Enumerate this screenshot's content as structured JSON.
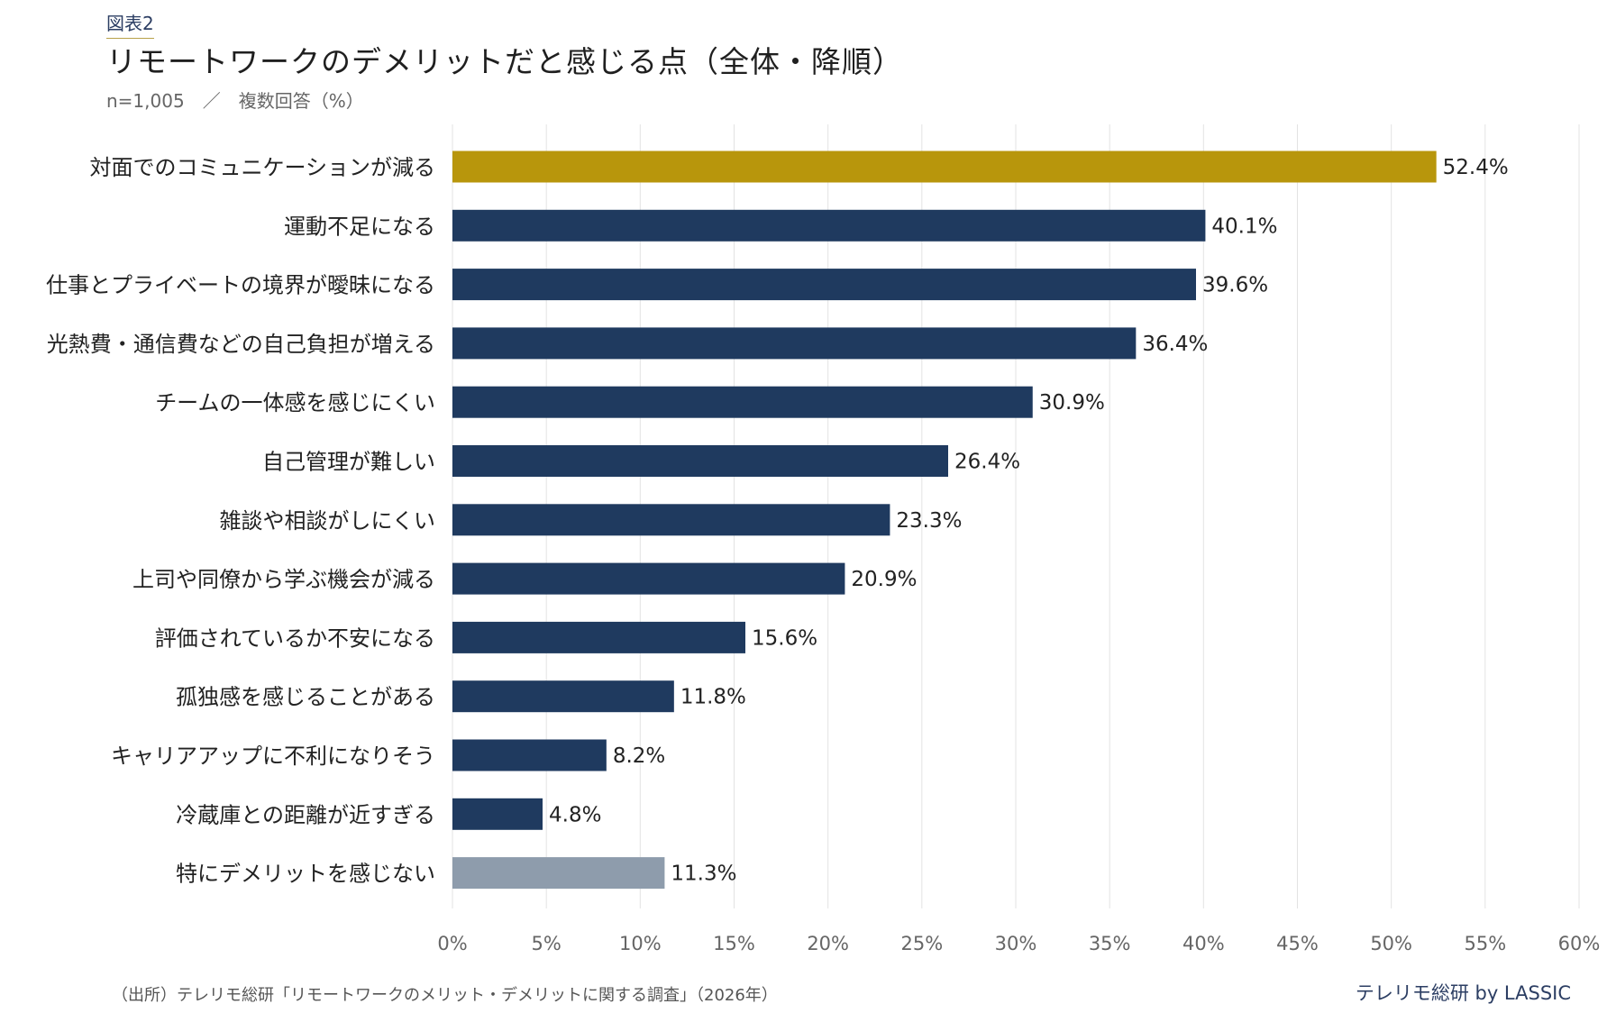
{
  "header": {
    "figure_label": "図表2",
    "title": "リモートワークのデメリットだと感じる点（全体・降順）",
    "subtitle": "n=1,005　／　複数回答（%）"
  },
  "footer": {
    "source": "（出所）テレリモ総研「リモートワークのメリット・デメリットに関する調査」（2026年）",
    "credit": "テレリモ総研 by LASSIC"
  },
  "colors": {
    "highlight": "#b8960c",
    "default": "#1f3a5f",
    "none": "#8e9cac",
    "grid": "#e3e3e3"
  },
  "chart_data": {
    "type": "bar",
    "orientation": "horizontal",
    "title": "リモートワークのデメリットだと感じる点（全体・降順）",
    "xlim": [
      0,
      60
    ],
    "x_ticks": [
      0,
      5,
      10,
      15,
      20,
      25,
      30,
      35,
      40,
      45,
      50,
      55,
      60
    ],
    "tick_suffix": "%",
    "grid": "vertical",
    "categories": [
      "対面でのコミュニケーションが減る",
      "運動不足になる",
      "仕事とプライベートの境界が曖昧になる",
      "光熱費・通信費などの自己負担が増える",
      "チームの一体感を感じにくい",
      "自己管理が難しい",
      "雑談や相談がしにくい",
      "上司や同僚から学ぶ機会が減る",
      "評価されているか不安になる",
      "孤独感を感じることがある",
      "キャリアアップに不利になりそう",
      "冷蔵庫との距離が近すぎる",
      "特にデメリットを感じない"
    ],
    "values": [
      52.4,
      40.1,
      39.6,
      36.4,
      30.9,
      26.4,
      23.3,
      20.9,
      15.6,
      11.8,
      8.2,
      4.8,
      11.3
    ],
    "value_labels": [
      "52.4%",
      "40.1%",
      "39.6%",
      "36.4%",
      "30.9%",
      "26.4%",
      "23.3%",
      "20.9%",
      "15.6%",
      "11.8%",
      "8.2%",
      "4.8%",
      "11.3%"
    ],
    "bar_roles": [
      "highlight",
      "default",
      "default",
      "default",
      "default",
      "default",
      "default",
      "default",
      "default",
      "default",
      "default",
      "default",
      "none"
    ]
  }
}
